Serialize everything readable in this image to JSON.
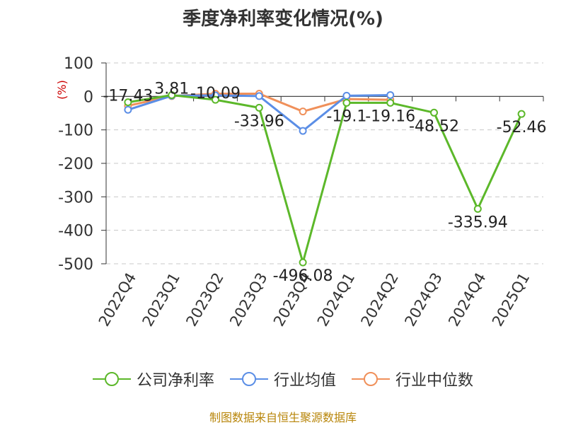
{
  "chart_data": {
    "type": "line",
    "title": "季度净利率变化情况(%)",
    "ylabel": "(%)",
    "xlabel": "",
    "categories": [
      "2022Q4",
      "2023Q1",
      "2023Q2",
      "2023Q3",
      "2023Q4",
      "2024Q1",
      "2024Q2",
      "2024Q3",
      "2024Q4",
      "2025Q1"
    ],
    "yticks": [
      100,
      0,
      -100,
      -200,
      -300,
      -400,
      -500
    ],
    "ylim": [
      -500,
      100
    ],
    "grid": true,
    "legend_position": "bottom",
    "series": [
      {
        "name": "公司净利率",
        "color": "#5cb82a",
        "values": [
          -17.43,
          3.81,
          -10.09,
          -33.96,
          -496.08,
          -19.1,
          -19.16,
          -48.52,
          -335.94,
          -52.46
        ],
        "labels": [
          "-17.43",
          "3.81",
          "-10.09",
          "-33.96",
          "-496.08",
          "-19.1",
          "-19.16",
          "-48.52",
          "-335.94",
          "-52.46"
        ]
      },
      {
        "name": "行业均值",
        "color": "#5b8ee6",
        "values": [
          -40,
          2,
          3,
          1,
          -103,
          2,
          4,
          null,
          null,
          null
        ]
      },
      {
        "name": "行业中位数",
        "color": "#f0905a",
        "values": [
          -28,
          1,
          8,
          8,
          -45,
          -8,
          -10,
          null,
          null,
          null
        ]
      }
    ]
  },
  "source_note": "制图数据来自恒生聚源数据库"
}
